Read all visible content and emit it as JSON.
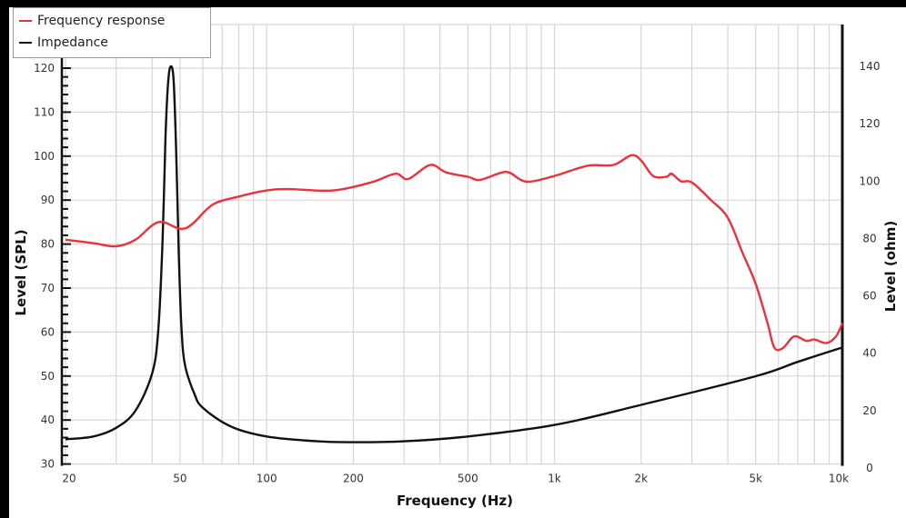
{
  "chart_data": {
    "type": "line",
    "title": "",
    "xlabel": "Frequency (Hz)",
    "ylabel": "Level (SPL)",
    "y2label": "Level (ohm)",
    "xscale": "log",
    "xlim": [
      20,
      10000
    ],
    "ylim": [
      30,
      120
    ],
    "y2lim": [
      0,
      140
    ],
    "grid": true,
    "legend_position": "top-left",
    "x_ticks": [
      {
        "value": 20,
        "label": "20"
      },
      {
        "value": 50,
        "label": "50"
      },
      {
        "value": 100,
        "label": "100"
      },
      {
        "value": 200,
        "label": "200"
      },
      {
        "value": 500,
        "label": "500"
      },
      {
        "value": 1000,
        "label": "1k"
      },
      {
        "value": 2000,
        "label": "2k"
      },
      {
        "value": 5000,
        "label": "5k"
      },
      {
        "value": 10000,
        "label": "10k"
      }
    ],
    "x_gridlines": [
      20,
      30,
      40,
      50,
      60,
      70,
      80,
      90,
      100,
      200,
      300,
      400,
      500,
      600,
      700,
      800,
      900,
      1000,
      2000,
      3000,
      4000,
      5000,
      6000,
      7000,
      8000,
      9000,
      10000
    ],
    "y_ticks": [
      30,
      40,
      50,
      60,
      70,
      80,
      90,
      100,
      110,
      120
    ],
    "y2_ticks": [
      0,
      20,
      40,
      60,
      80,
      100,
      120,
      140
    ],
    "series": [
      {
        "name": "Frequency response",
        "axis": "left",
        "color": "#e8323c",
        "x": [
          20,
          25,
          30,
          35,
          42,
          50,
          55,
          65,
          80,
          100,
          120,
          170,
          230,
          280,
          310,
          370,
          420,
          500,
          550,
          650,
          700,
          800,
          1000,
          1300,
          1600,
          1850,
          2000,
          2200,
          2450,
          2550,
          2750,
          3000,
          3500,
          4000,
          4500,
          5000,
          5500,
          5800,
          6200,
          6800,
          7500,
          8000,
          8800,
          9500,
          10000
        ],
        "values": [
          81,
          80.2,
          79.5,
          81,
          85,
          83.5,
          84.5,
          89,
          90.8,
          92.2,
          92.5,
          92.2,
          94,
          96,
          94.8,
          98,
          96.3,
          95.3,
          94.6,
          96.2,
          96.2,
          94.2,
          95.5,
          97.8,
          98,
          100.2,
          99,
          95.5,
          95.3,
          96,
          94.3,
          94,
          90,
          86,
          78,
          71,
          62,
          56.5,
          56.3,
          59,
          58,
          58.3,
          57.5,
          59,
          62
        ]
      },
      {
        "name": "Impedance",
        "axis": "right",
        "color": "#111111",
        "x": [
          20,
          25,
          30,
          35,
          40,
          42,
          43.5,
          44.5,
          45.5,
          46.5,
          47.5,
          48.5,
          49.5,
          50.5,
          52,
          56,
          60,
          75,
          100,
          150,
          200,
          300,
          500,
          1000,
          2000,
          5000,
          7000,
          10000
        ],
        "values": [
          10,
          11,
          14,
          20,
          33,
          48,
          80,
          115,
          135,
          140,
          135,
          110,
          75,
          50,
          36,
          26,
          21,
          14.5,
          11,
          9.3,
          9,
          9.3,
          11,
          15,
          22,
          32,
          37,
          42
        ]
      }
    ]
  },
  "legend": {
    "items": [
      {
        "label": "Frequency response",
        "color": "#e8323c"
      },
      {
        "label": "Impedance",
        "color": "#111111"
      }
    ]
  }
}
